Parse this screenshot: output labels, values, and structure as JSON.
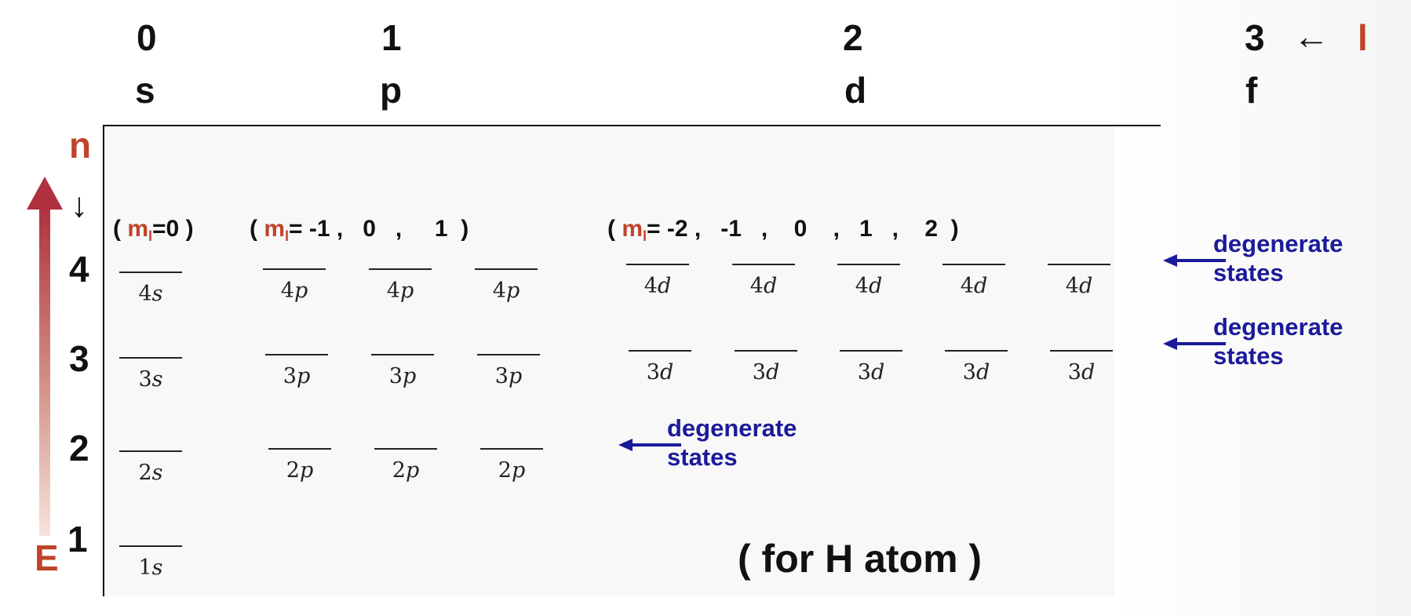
{
  "l_header": {
    "columns": [
      {
        "l": "0",
        "sym": "s"
      },
      {
        "l": "1",
        "sym": "p"
      },
      {
        "l": "2",
        "sym": "d"
      },
      {
        "l": "3",
        "sym": "f"
      }
    ],
    "arrow": "←",
    "label": "l"
  },
  "n_axis": {
    "label": "n",
    "arrow": "↓",
    "energy_label": "E",
    "levels": [
      "1",
      "2",
      "3",
      "4"
    ]
  },
  "ml_labels": {
    "s": {
      "open": "( ",
      "m": "m",
      "sub": "l",
      "values": "=0 )"
    },
    "p": {
      "open": "( ",
      "m": "m",
      "sub": "l",
      "values": "= -1 ,   0   ,     1  )"
    },
    "d": {
      "open": "( ",
      "m": "m",
      "sub": "l",
      "values": "= -2 ,   -1   ,    0    ,   1   ,    2  )"
    }
  },
  "orbitals": {
    "n4": {
      "s": [
        "4",
        "s"
      ],
      "p": [
        "4",
        "p"
      ],
      "d": [
        "4",
        "d"
      ]
    },
    "n3": {
      "s": [
        "3",
        "s"
      ],
      "p": [
        "3",
        "p"
      ],
      "d": [
        "3",
        "d"
      ]
    },
    "n2": {
      "s": [
        "2",
        "s"
      ],
      "p": [
        "2",
        "p"
      ]
    },
    "n1": {
      "s": [
        "1",
        "s"
      ]
    }
  },
  "degenerate": {
    "line1": "degenerate",
    "line2": "states"
  },
  "title": "( for H atom )",
  "colors": {
    "accent": "#c0442a",
    "degenerate": "#1a1a9a",
    "text": "#111111"
  }
}
